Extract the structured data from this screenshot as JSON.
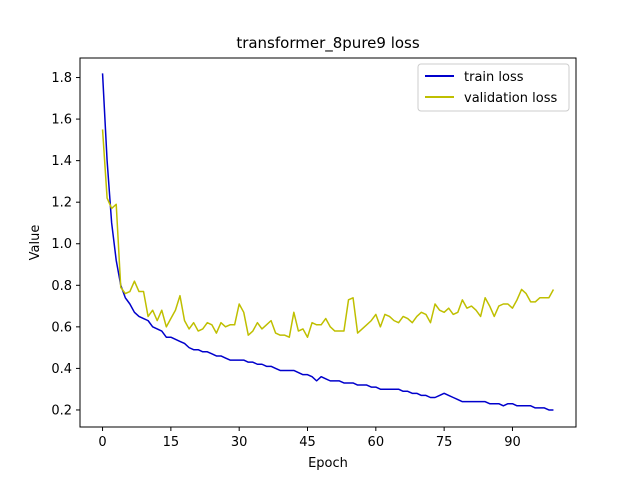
{
  "chart_data": {
    "type": "line",
    "title": "transformer_8pure9 loss",
    "xlabel": "Epoch",
    "ylabel": "Value",
    "xlim": [
      -4.95,
      103.95
    ],
    "ylim": [
      0.118,
      1.894
    ],
    "xticks": [
      0,
      15,
      30,
      45,
      60,
      75,
      90
    ],
    "yticks": [
      0.2,
      0.4,
      0.6,
      0.8,
      1.0,
      1.2,
      1.4,
      1.6,
      1.8
    ],
    "ytick_labels": [
      "0.2",
      "0.4",
      "0.6",
      "0.8",
      "1.0",
      "1.2",
      "1.4",
      "1.6",
      "1.8"
    ],
    "legend": {
      "position": "top-right"
    },
    "grid": false,
    "series": [
      {
        "name": "train loss",
        "color": "#0000cc",
        "x": [
          0,
          1,
          2,
          3,
          4,
          5,
          6,
          7,
          8,
          9,
          10,
          11,
          12,
          13,
          14,
          15,
          16,
          17,
          18,
          19,
          20,
          21,
          22,
          23,
          24,
          25,
          26,
          27,
          28,
          29,
          30,
          31,
          32,
          33,
          34,
          35,
          36,
          37,
          38,
          39,
          40,
          41,
          42,
          43,
          44,
          45,
          46,
          47,
          48,
          49,
          50,
          51,
          52,
          53,
          54,
          55,
          56,
          57,
          58,
          59,
          60,
          61,
          62,
          63,
          64,
          65,
          66,
          67,
          68,
          69,
          70,
          71,
          72,
          73,
          74,
          75,
          76,
          77,
          78,
          79,
          80,
          81,
          82,
          83,
          84,
          85,
          86,
          87,
          88,
          89,
          90,
          91,
          92,
          93,
          94,
          95,
          96,
          97,
          98,
          99
        ],
        "values": [
          1.82,
          1.4,
          1.1,
          0.92,
          0.8,
          0.74,
          0.71,
          0.67,
          0.65,
          0.64,
          0.63,
          0.6,
          0.59,
          0.58,
          0.55,
          0.55,
          0.54,
          0.53,
          0.52,
          0.5,
          0.49,
          0.49,
          0.48,
          0.48,
          0.47,
          0.46,
          0.46,
          0.45,
          0.44,
          0.44,
          0.44,
          0.44,
          0.43,
          0.43,
          0.42,
          0.42,
          0.41,
          0.41,
          0.4,
          0.39,
          0.39,
          0.39,
          0.39,
          0.38,
          0.37,
          0.37,
          0.36,
          0.34,
          0.36,
          0.35,
          0.34,
          0.34,
          0.34,
          0.33,
          0.33,
          0.33,
          0.32,
          0.32,
          0.32,
          0.31,
          0.31,
          0.3,
          0.3,
          0.3,
          0.3,
          0.3,
          0.29,
          0.29,
          0.28,
          0.28,
          0.27,
          0.27,
          0.26,
          0.26,
          0.27,
          0.28,
          0.27,
          0.26,
          0.25,
          0.24,
          0.24,
          0.24,
          0.24,
          0.24,
          0.24,
          0.23,
          0.23,
          0.23,
          0.22,
          0.23,
          0.23,
          0.22,
          0.22,
          0.22,
          0.22,
          0.21,
          0.21,
          0.21,
          0.2,
          0.2
        ]
      },
      {
        "name": "validation loss",
        "color": "#bfbf00",
        "x": [
          0,
          1,
          2,
          3,
          4,
          5,
          6,
          7,
          8,
          9,
          10,
          11,
          12,
          13,
          14,
          15,
          16,
          17,
          18,
          19,
          20,
          21,
          22,
          23,
          24,
          25,
          26,
          27,
          28,
          29,
          30,
          31,
          32,
          33,
          34,
          35,
          36,
          37,
          38,
          39,
          40,
          41,
          42,
          43,
          44,
          45,
          46,
          47,
          48,
          49,
          50,
          51,
          52,
          53,
          54,
          55,
          56,
          57,
          58,
          59,
          60,
          61,
          62,
          63,
          64,
          65,
          66,
          67,
          68,
          69,
          70,
          71,
          72,
          73,
          74,
          75,
          76,
          77,
          78,
          79,
          80,
          81,
          82,
          83,
          84,
          85,
          86,
          87,
          88,
          89,
          90,
          91,
          92,
          93,
          94,
          95,
          96,
          97,
          98,
          99
        ],
        "values": [
          1.55,
          1.22,
          1.17,
          1.19,
          0.79,
          0.76,
          0.77,
          0.82,
          0.77,
          0.77,
          0.65,
          0.68,
          0.63,
          0.68,
          0.6,
          0.64,
          0.68,
          0.75,
          0.63,
          0.59,
          0.62,
          0.58,
          0.59,
          0.62,
          0.61,
          0.57,
          0.62,
          0.6,
          0.61,
          0.61,
          0.71,
          0.67,
          0.56,
          0.58,
          0.62,
          0.59,
          0.61,
          0.63,
          0.57,
          0.56,
          0.56,
          0.55,
          0.67,
          0.58,
          0.59,
          0.55,
          0.62,
          0.61,
          0.61,
          0.64,
          0.6,
          0.58,
          0.58,
          0.58,
          0.73,
          0.74,
          0.57,
          0.59,
          0.61,
          0.63,
          0.66,
          0.6,
          0.66,
          0.65,
          0.63,
          0.62,
          0.65,
          0.64,
          0.62,
          0.65,
          0.67,
          0.66,
          0.62,
          0.71,
          0.68,
          0.67,
          0.69,
          0.66,
          0.67,
          0.73,
          0.69,
          0.7,
          0.68,
          0.65,
          0.74,
          0.7,
          0.65,
          0.7,
          0.71,
          0.71,
          0.69,
          0.73,
          0.78,
          0.76,
          0.72,
          0.72,
          0.74,
          0.74,
          0.74,
          0.78
        ]
      }
    ]
  }
}
